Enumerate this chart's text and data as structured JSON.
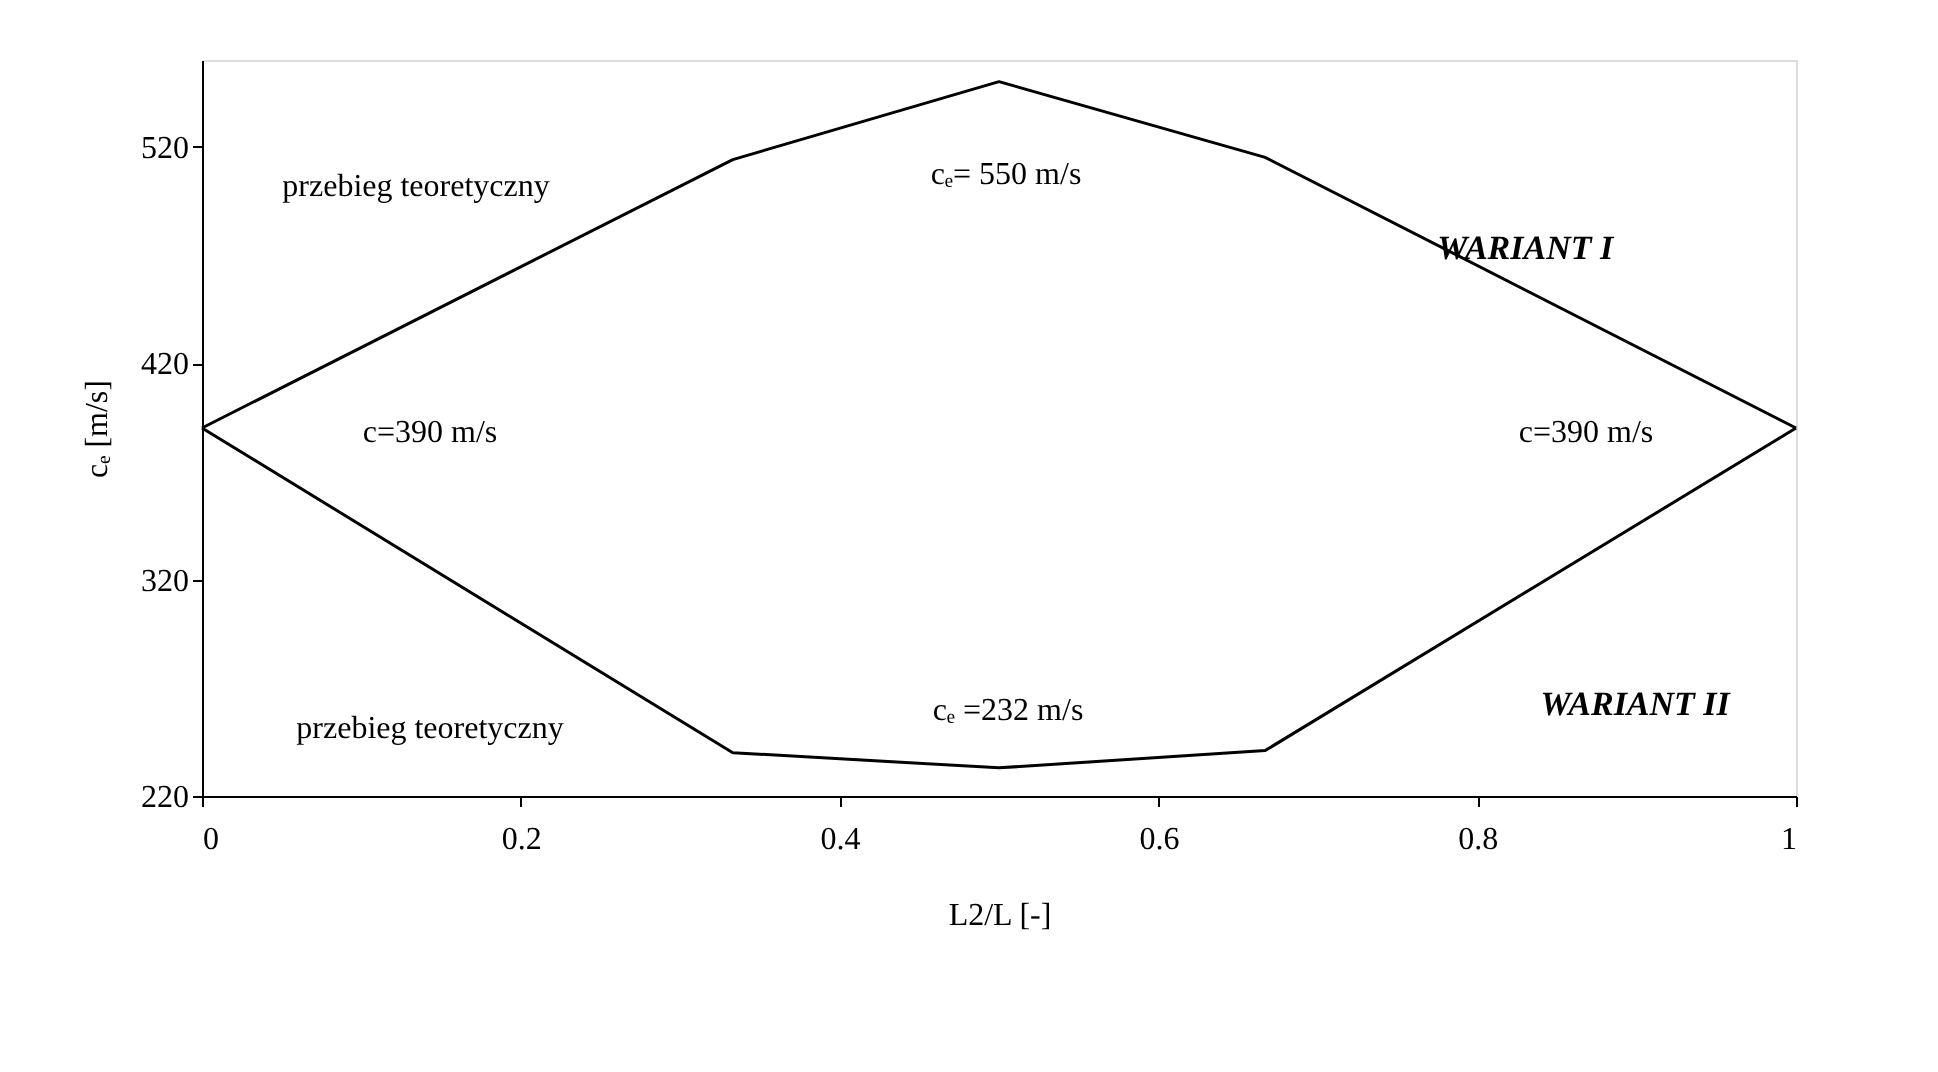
{
  "chart_data": {
    "type": "line",
    "xlabel": "L2/L [-]",
    "ylabel": "cₑ [m/s]",
    "xlim": [
      0,
      1
    ],
    "xticks": [
      0,
      0.2,
      0.4,
      0.6,
      0.8,
      1
    ],
    "ylim": [
      220,
      560
    ],
    "yticks": [
      220,
      320,
      420,
      520
    ],
    "grid": false,
    "legend": false,
    "marker": "none",
    "line_style": "solid",
    "series": [
      {
        "name": "WARIANT I",
        "color": "#000000",
        "x": [
          0,
          0.333,
          0.5,
          0.667,
          1
        ],
        "values": [
          390,
          514,
          550,
          515,
          390
        ]
      },
      {
        "name": "WARIANT II",
        "color": "#000000",
        "x": [
          0,
          0.333,
          0.5,
          0.667,
          1
        ],
        "values": [
          390,
          240,
          233,
          241,
          390
        ]
      }
    ],
    "annotations": [
      "przebieg teoretyczny",
      "cₑ= 550 m/s",
      "c=390 m/s",
      "c=390 m/s",
      "przebieg teoretyczny",
      "cₑ =232 m/s"
    ]
  }
}
